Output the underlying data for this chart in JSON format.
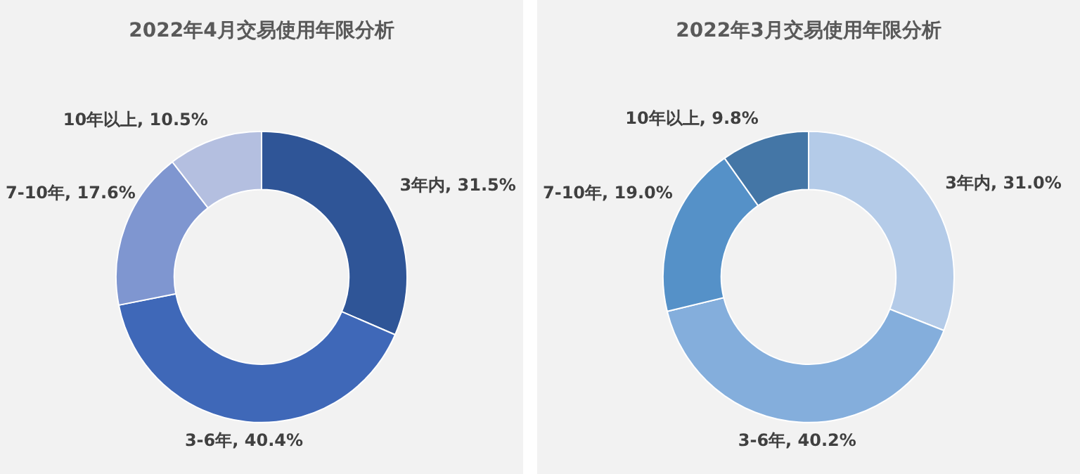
{
  "chart_data": [
    {
      "type": "donut",
      "title": "2022年4月交易使用年限分析",
      "categories": [
        "3年内",
        "3-6年",
        "7-10年",
        "10年以上"
      ],
      "values": [
        31.5,
        40.4,
        17.6,
        10.5
      ],
      "value_labels": [
        "31.5%",
        "40.4%",
        "17.6%",
        "10.5%"
      ],
      "colors": [
        "#2f5597",
        "#3f68b8",
        "#7f96d0",
        "#b4bfe0"
      ]
    },
    {
      "type": "donut",
      "title": "2022年3月交易使用年限分析",
      "categories": [
        "3年内",
        "3-6年",
        "7-10年",
        "10年以上"
      ],
      "values": [
        31.0,
        40.2,
        19.0,
        9.8
      ],
      "value_labels": [
        "31.0%",
        "40.2%",
        "19.0%",
        "9.8%"
      ],
      "colors": [
        "#b4cbe8",
        "#84aedc",
        "#5591c8",
        "#4476a6"
      ]
    }
  ]
}
